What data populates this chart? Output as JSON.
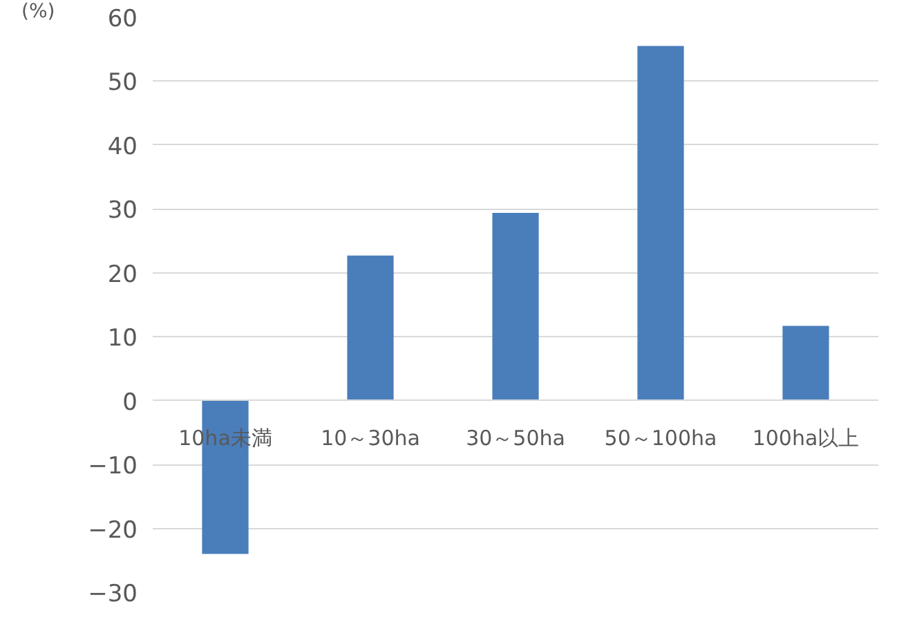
{
  "chart_data": {
    "type": "bar",
    "ylabel": "(%)",
    "categories": [
      "10ha未満",
      "10～30ha",
      "30～50ha",
      "50～100ha",
      "100ha以上"
    ],
    "values": [
      -24,
      22.7,
      29.4,
      55.5,
      11.7
    ],
    "color": "#4a7ebb",
    "ylim": [
      -30,
      60
    ],
    "yticks": [
      -30,
      -20,
      -10,
      0,
      10,
      20,
      30,
      40,
      50,
      60
    ],
    "grid": "y"
  }
}
